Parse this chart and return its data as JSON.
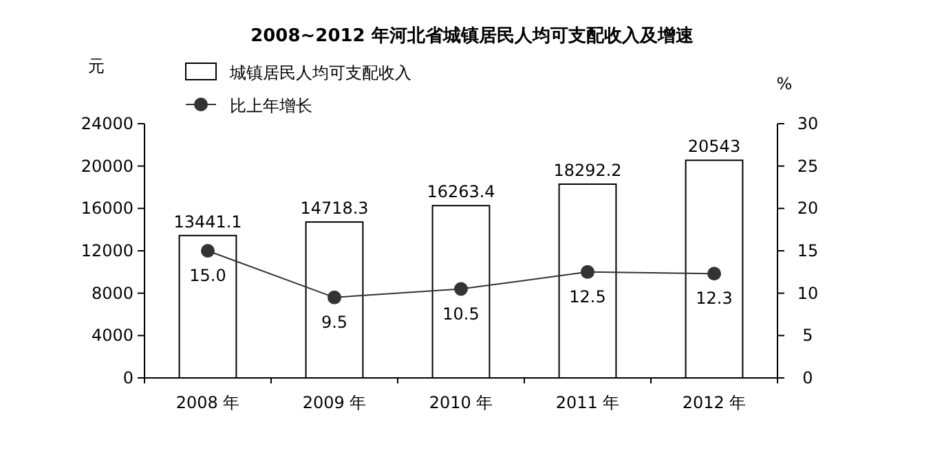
{
  "chart_data": {
    "type": "bar",
    "title": "2008~2012 年河北省城镇居民人均可支配收入及增速",
    "ylabel": "元",
    "y2label": "%",
    "categories": [
      "2008 年",
      "2009 年",
      "2010 年",
      "2011 年",
      "2012 年"
    ],
    "series": [
      {
        "name": "城镇居民人均可支配收入",
        "color": "#ffffff",
        "values": [
          13441.1,
          14718.3,
          16263.4,
          18292.2,
          20543
        ]
      },
      {
        "name": "比上年增长",
        "type": "line",
        "axis": "y2",
        "color": "#333333",
        "marker": "circle",
        "values": [
          15.0,
          9.5,
          10.5,
          12.5,
          12.3
        ],
        "value_labels": [
          "15.0",
          "9.5",
          "10.5",
          "12.5",
          "12.3"
        ]
      }
    ],
    "ylim": [
      0,
      24000
    ],
    "yticks": [
      0,
      4000,
      8000,
      12000,
      16000,
      20000,
      24000
    ],
    "y2lim": [
      0,
      30
    ],
    "y2ticks": [
      0,
      5,
      10,
      15,
      20,
      25,
      30
    ],
    "data_labels": true,
    "legend": "top left",
    "grid": false
  }
}
